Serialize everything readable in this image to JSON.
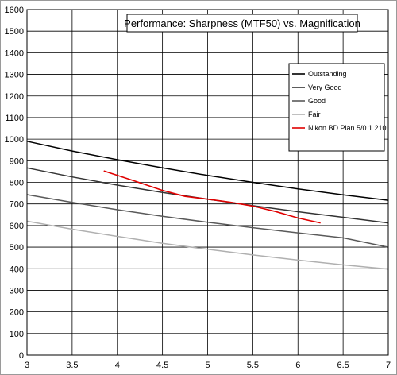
{
  "chart_data": {
    "type": "line",
    "title": "Performance: Sharpness (MTF50) vs. Magnification",
    "xlabel": "",
    "ylabel": "",
    "xlim": [
      3,
      7
    ],
    "ylim": [
      0,
      1600
    ],
    "x_ticks": [
      3,
      3.5,
      4,
      4.5,
      5,
      5.5,
      6,
      6.5,
      7
    ],
    "x_tick_labels": [
      "3",
      "3.5",
      "4",
      "4.5",
      "5",
      "5.5",
      "6",
      "6.5",
      "7"
    ],
    "y_ticks": [
      0,
      100,
      200,
      300,
      400,
      500,
      600,
      700,
      800,
      900,
      1000,
      1100,
      1200,
      1300,
      1400,
      1500,
      1600
    ],
    "y_tick_labels": [
      "0",
      "100",
      "200",
      "300",
      "400",
      "500",
      "600",
      "700",
      "800",
      "900",
      "1000",
      "1100",
      "1200",
      "1300",
      "1400",
      "1500",
      "1600"
    ],
    "grid": true,
    "legend_position": "right",
    "series": [
      {
        "name": "Outstanding",
        "color": "#000000",
        "x": [
          3,
          3.5,
          4,
          4.5,
          5,
          5.5,
          6,
          6.5,
          7
        ],
        "y": [
          990,
          945,
          905,
          867,
          832,
          800,
          770,
          742,
          717
        ]
      },
      {
        "name": "Very Good",
        "color": "#333333",
        "x": [
          3,
          3.5,
          4,
          4.5,
          5,
          5.5,
          6,
          6.5,
          7
        ],
        "y": [
          867,
          825,
          787,
          753,
          722,
          692,
          664,
          638,
          612
        ]
      },
      {
        "name": "Good",
        "color": "#5a5a5a",
        "x": [
          3,
          3.5,
          4,
          4.5,
          5,
          5.5,
          6,
          6.5,
          7
        ],
        "y": [
          743,
          707,
          673,
          643,
          615,
          590,
          566,
          543,
          500
        ]
      },
      {
        "name": "Fair",
        "color": "#b0b0b0",
        "x": [
          3,
          3.5,
          4,
          4.5,
          5,
          5.5,
          6,
          6.5,
          7
        ],
        "y": [
          620,
          583,
          550,
          518,
          490,
          464,
          440,
          418,
          398
        ]
      },
      {
        "name": "Nikon BD Plan 5/0.1 210",
        "color": "#e00000",
        "x": [
          3.85,
          4.2,
          4.5,
          4.75,
          5.0,
          5.25,
          5.5,
          5.75,
          6.0,
          6.25
        ],
        "y": [
          853,
          805,
          763,
          735,
          722,
          708,
          690,
          665,
          635,
          612
        ]
      }
    ]
  }
}
